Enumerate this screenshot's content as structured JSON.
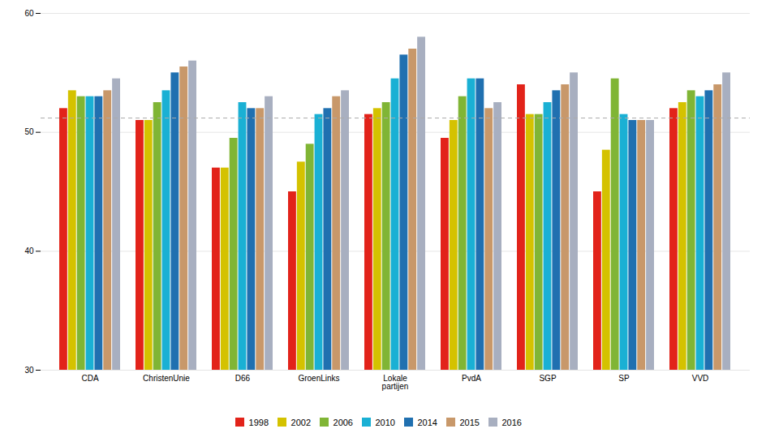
{
  "chart_data": {
    "type": "bar",
    "categories": [
      "CDA",
      "ChristenUnie",
      "D66",
      "GroenLinks",
      "Lokale\npartijen",
      "PvdA",
      "SGP",
      "SP",
      "VVD"
    ],
    "series": [
      {
        "name": "1998",
        "color": "#e2231a",
        "values": [
          52.0,
          51.0,
          47.0,
          45.0,
          51.5,
          49.5,
          54.0,
          45.0,
          52.0
        ]
      },
      {
        "name": "2002",
        "color": "#d4c200",
        "values": [
          53.5,
          51.0,
          47.0,
          47.5,
          52.0,
          51.0,
          51.5,
          48.5,
          52.5
        ]
      },
      {
        "name": "2006",
        "color": "#80b535",
        "values": [
          53.0,
          52.5,
          49.5,
          49.0,
          52.5,
          53.0,
          51.5,
          54.5,
          53.5
        ]
      },
      {
        "name": "2010",
        "color": "#1ab0d4",
        "values": [
          53.0,
          53.5,
          52.5,
          51.5,
          54.5,
          54.5,
          52.5,
          51.5,
          53.0
        ]
      },
      {
        "name": "2014",
        "color": "#2070b0",
        "values": [
          53.0,
          55.0,
          52.0,
          52.0,
          56.5,
          54.5,
          53.5,
          51.0,
          53.5
        ]
      },
      {
        "name": "2015",
        "color": "#c8986a",
        "values": [
          53.5,
          55.5,
          52.0,
          53.0,
          57.0,
          52.0,
          54.0,
          51.0,
          54.0
        ]
      },
      {
        "name": "2016",
        "color": "#a8afc0",
        "values": [
          54.5,
          56.0,
          53.0,
          53.5,
          58.0,
          52.5,
          55.0,
          51.0,
          55.0
        ]
      }
    ],
    "ylim": [
      30,
      60
    ],
    "yticks": [
      30,
      40,
      50,
      60
    ],
    "grid": true,
    "legend": "bottom",
    "reference_line": 51.2
  }
}
